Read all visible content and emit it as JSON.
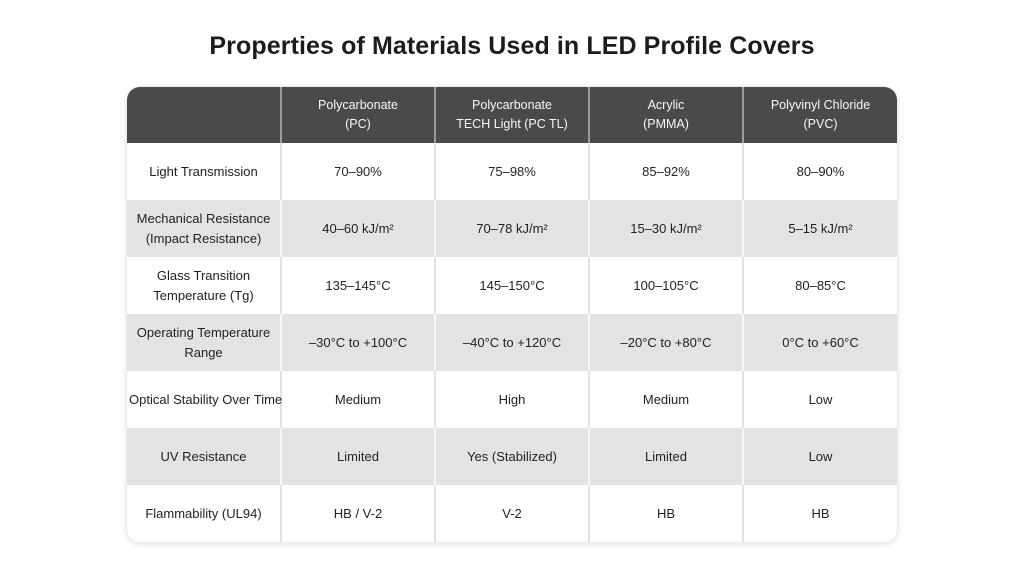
{
  "title": "Properties of Materials Used in LED Profile Covers",
  "colors": {
    "header_bg": "#4a4a4a",
    "header_text": "#f7f7f7",
    "row_bg": "#ffffff",
    "row_alt_bg": "#e3e3e3",
    "title_text": "#1c1c1c",
    "body_text": "#222222"
  },
  "chart_data": {
    "type": "table",
    "title": "Properties of Materials Used in LED Profile Covers",
    "column_headers": [
      "",
      "Polycarbonate\n(PC)",
      "Polycarbonate\nTECH Light (PC TL)",
      "Acrylic\n(PMMA)",
      "Polyvinyl Chloride\n(PVC)"
    ],
    "rows": [
      {
        "label": "Light Transmission",
        "values": [
          "70–90%",
          "75–98%",
          "85–92%",
          "80–90%"
        ]
      },
      {
        "label": "Mechanical Resistance\n(Impact Resistance)",
        "values": [
          "40–60 kJ/m²",
          "70–78 kJ/m²",
          "15–30 kJ/m²",
          "5–15 kJ/m²"
        ]
      },
      {
        "label": "Glass Transition\nTemperature (Tg)",
        "values": [
          "135–145°C",
          "145–150°C",
          "100–105°C",
          "80–85°C"
        ]
      },
      {
        "label": "Operating Temperature\nRange",
        "values": [
          "–30°C to +100°C",
          "–40°C to +120°C",
          "–20°C to +80°C",
          "0°C to +60°C"
        ]
      },
      {
        "label": "Optical Stability Over Time",
        "values": [
          "Medium",
          "High",
          "Medium",
          "Low"
        ]
      },
      {
        "label": "UV Resistance",
        "values": [
          "Limited",
          "Yes (Stabilized)",
          "Limited",
          "Low"
        ]
      },
      {
        "label": "Flammability (UL94)",
        "values": [
          "HB / V-2",
          "V-2",
          "HB",
          "HB"
        ]
      }
    ]
  }
}
